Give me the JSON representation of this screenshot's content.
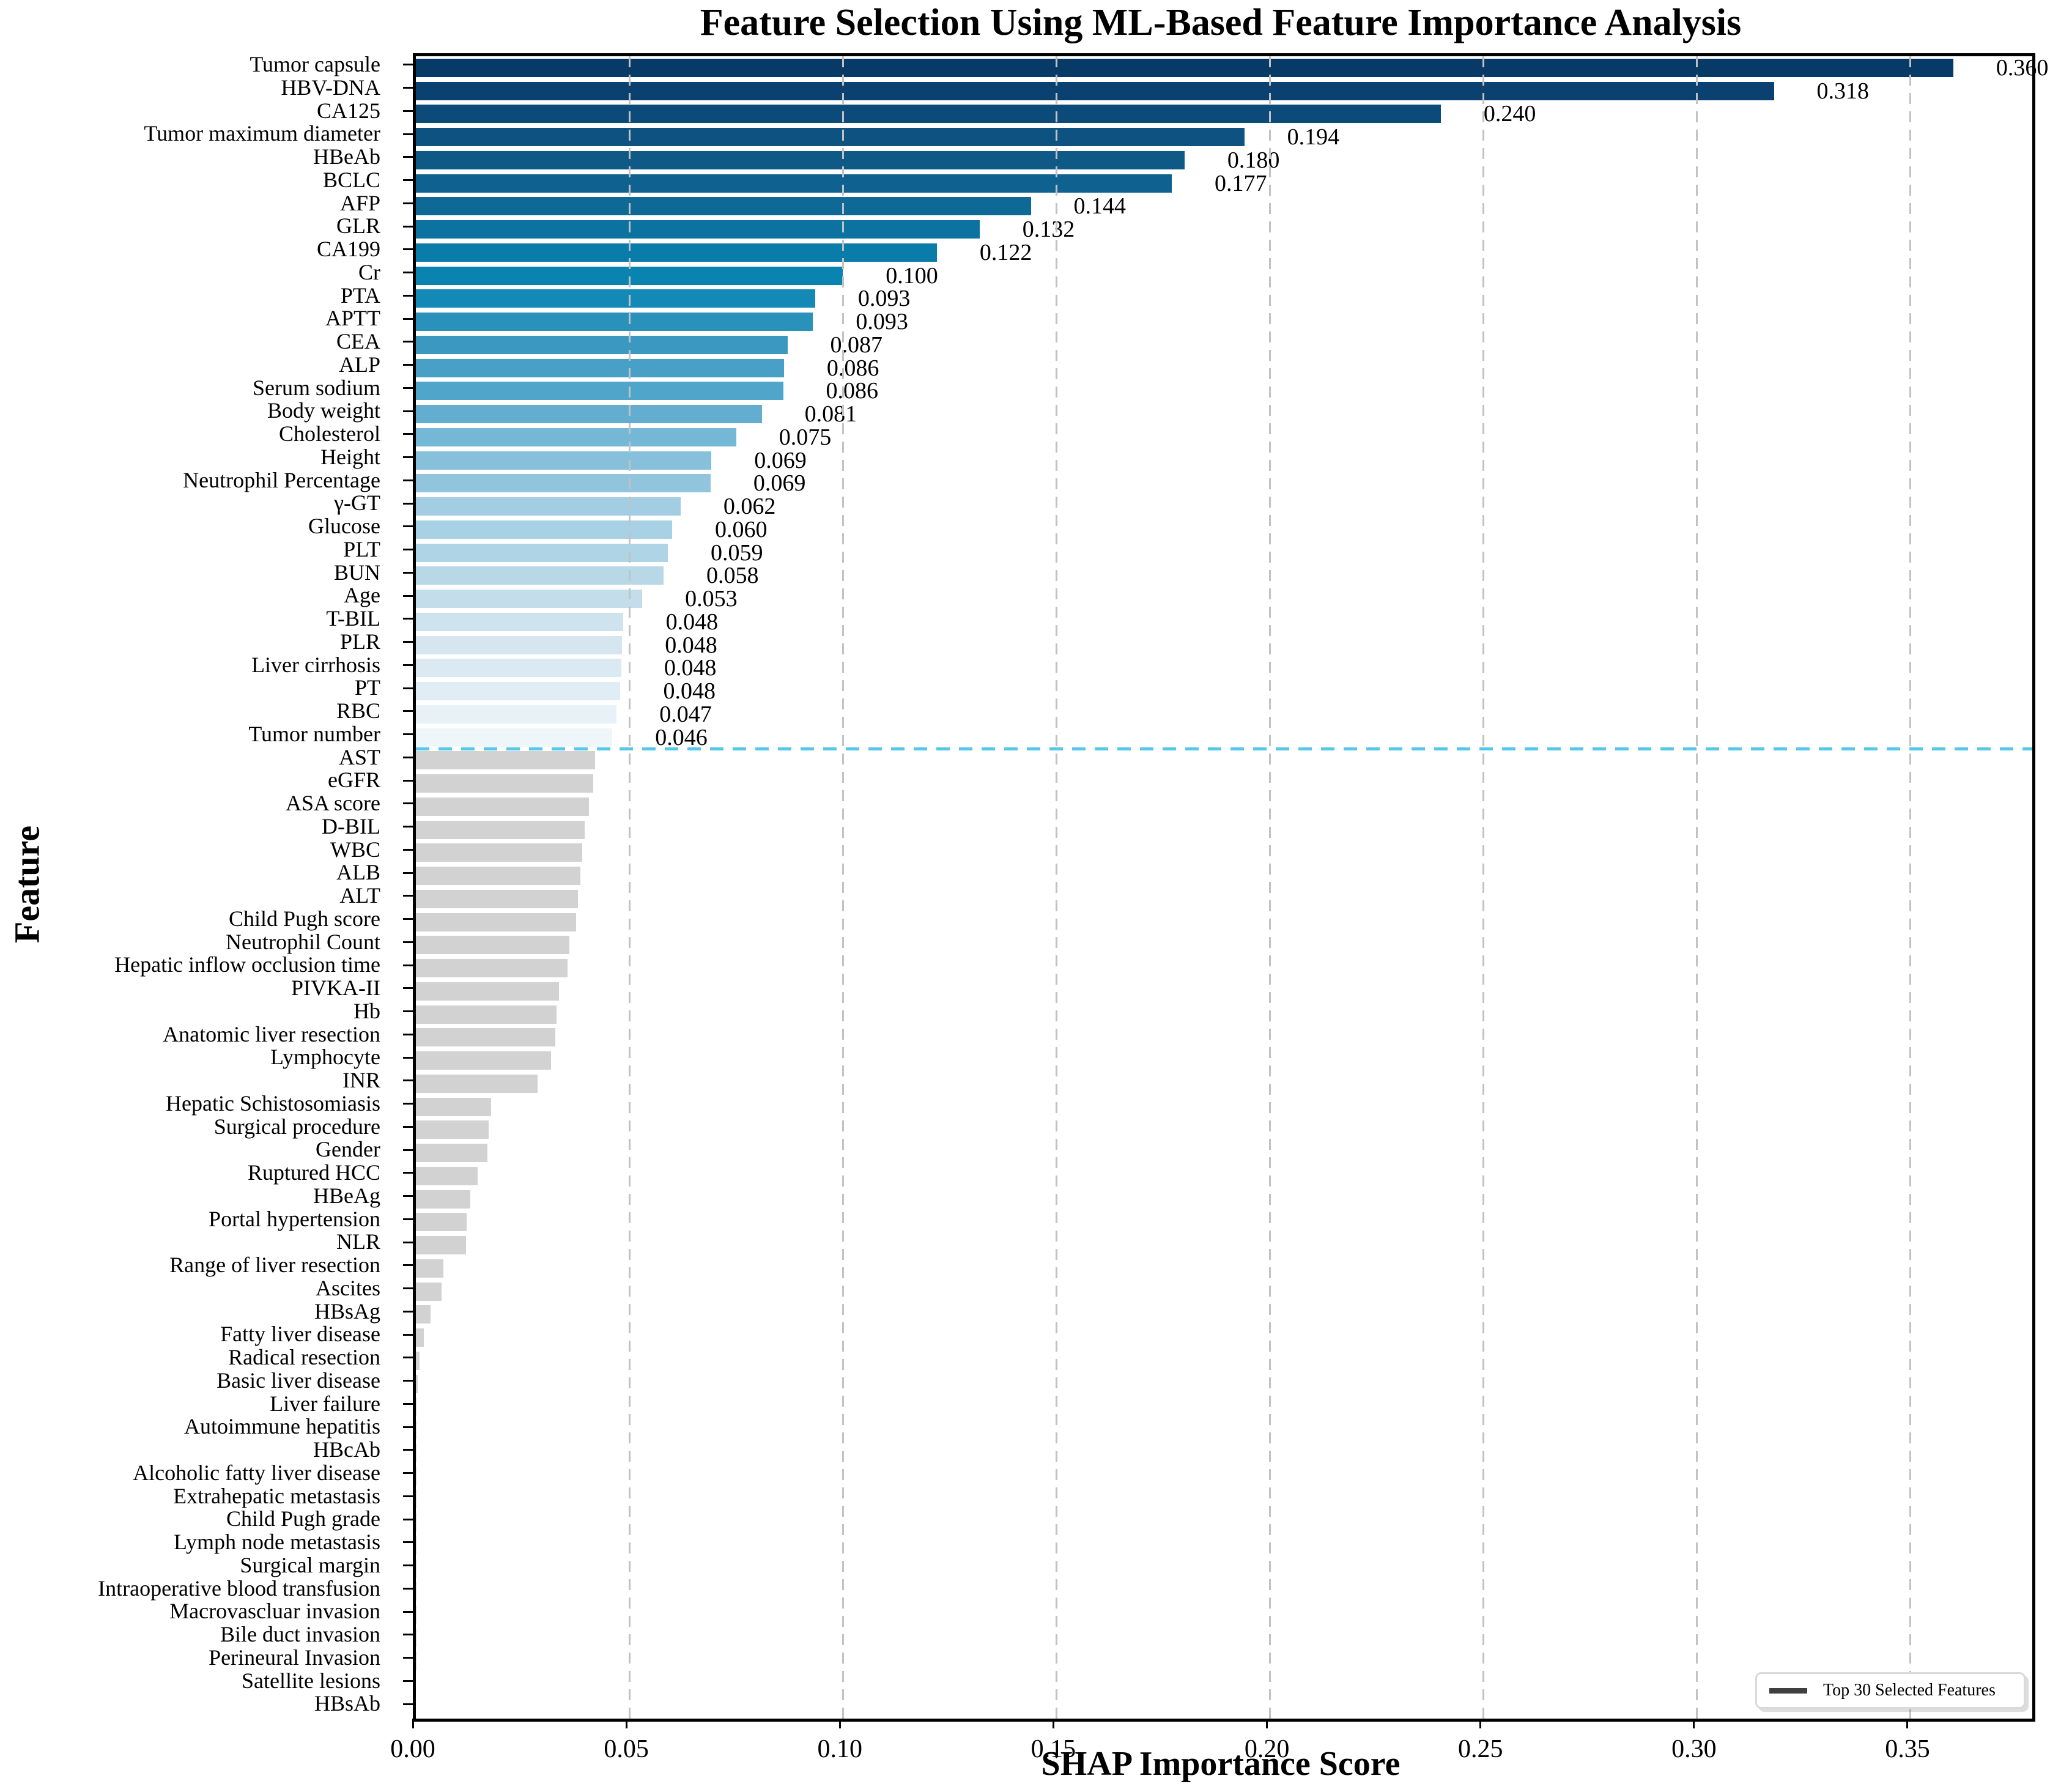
{
  "title": "Feature Selection Using ML-Based Feature Importance Analysis",
  "xlabel": "SHAP Importance Score",
  "ylabel": "Feature",
  "legend": {
    "label": "Top 30 Selected Features",
    "swatch_color": "#3f3f3f"
  },
  "separator": {
    "after_rank": 30,
    "color": "#55c7ea",
    "style": "dashed"
  },
  "axis": {
    "xmax": 0.3785,
    "xticks": [
      {
        "label": "0.00",
        "value": 0.0
      },
      {
        "label": "0.05",
        "value": 0.05
      },
      {
        "label": "0.10",
        "value": 0.1
      },
      {
        "label": "0.15",
        "value": 0.15
      },
      {
        "label": "0.20",
        "value": 0.2
      },
      {
        "label": "0.25",
        "value": 0.25
      },
      {
        "label": "0.30",
        "value": 0.3
      },
      {
        "label": "0.35",
        "value": 0.35
      }
    ],
    "grid": "vertical-dashed"
  },
  "colors": {
    "gray_bar": "#d2d2d2",
    "gridline": "#c2c2c2",
    "separator": "#55c7ea",
    "blue_ramp": [
      "#083a67",
      "#0a4170",
      "#0c4a79",
      "#0d5280",
      "#0f5987",
      "#0f618f",
      "#0e6997",
      "#0c73a0",
      "#0a7caa",
      "#0983b0",
      "#1589b5",
      "#2991ba",
      "#3b99c1",
      "#49a0c6",
      "#50a5ca",
      "#63aed0",
      "#75b8d6",
      "#86c0da",
      "#90c5dd",
      "#a3cde3",
      "#a9d1e5",
      "#afd4e6",
      "#b8d8e8",
      "#c3ddeb",
      "#cfe3ef",
      "#d5e6f0",
      "#dbe9f2",
      "#e0edf4",
      "#e8f1f7",
      "#eff6fa"
    ]
  },
  "chart_data": {
    "type": "bar",
    "orientation": "horizontal",
    "title": "Feature Selection Using ML-Based Feature Importance Analysis",
    "xlabel": "SHAP Importance Score",
    "ylabel": "Feature",
    "xlim": [
      0,
      0.3785
    ],
    "legend_position": "lower right",
    "features": [
      {
        "label": "Tumor capsule",
        "value": 0.36,
        "value_label": "0.360",
        "selected": true
      },
      {
        "label": "HBV-DNA",
        "value": 0.318,
        "value_label": "0.318",
        "selected": true
      },
      {
        "label": "CA125",
        "value": 0.24,
        "value_label": "0.240",
        "selected": true
      },
      {
        "label": "Tumor maximum diameter",
        "value": 0.194,
        "value_label": "0.194",
        "selected": true
      },
      {
        "label": "HBeAb",
        "value": 0.18,
        "value_label": "0.180",
        "selected": true
      },
      {
        "label": "BCLC",
        "value": 0.177,
        "value_label": "0.177",
        "selected": true
      },
      {
        "label": "AFP",
        "value": 0.144,
        "value_label": "0.144",
        "selected": true
      },
      {
        "label": "GLR",
        "value": 0.132,
        "value_label": "0.132",
        "selected": true
      },
      {
        "label": "CA199",
        "value": 0.122,
        "value_label": "0.122",
        "selected": true
      },
      {
        "label": "Cr",
        "value": 0.1,
        "value_label": "0.100",
        "selected": true
      },
      {
        "label": "PTA",
        "value": 0.0935,
        "value_label": "0.093",
        "selected": true
      },
      {
        "label": "APTT",
        "value": 0.093,
        "value_label": "0.093",
        "selected": true
      },
      {
        "label": "CEA",
        "value": 0.087,
        "value_label": "0.087",
        "selected": true
      },
      {
        "label": "ALP",
        "value": 0.0862,
        "value_label": "0.086",
        "selected": true
      },
      {
        "label": "Serum sodium",
        "value": 0.086,
        "value_label": "0.086",
        "selected": true
      },
      {
        "label": "Body weight",
        "value": 0.081,
        "value_label": "0.081",
        "selected": true
      },
      {
        "label": "Cholesterol",
        "value": 0.075,
        "value_label": "0.075",
        "selected": true
      },
      {
        "label": "Height",
        "value": 0.0692,
        "value_label": "0.069",
        "selected": true
      },
      {
        "label": "Neutrophil Percentage",
        "value": 0.069,
        "value_label": "0.069",
        "selected": true
      },
      {
        "label": "γ-GT",
        "value": 0.062,
        "value_label": "0.062",
        "selected": true
      },
      {
        "label": "Glucose",
        "value": 0.06,
        "value_label": "0.060",
        "selected": true
      },
      {
        "label": "PLT",
        "value": 0.059,
        "value_label": "0.059",
        "selected": true
      },
      {
        "label": "BUN",
        "value": 0.058,
        "value_label": "0.058",
        "selected": true
      },
      {
        "label": "Age",
        "value": 0.053,
        "value_label": "0.053",
        "selected": true
      },
      {
        "label": "T-BIL",
        "value": 0.0485,
        "value_label": "0.048",
        "selected": true
      },
      {
        "label": "PLR",
        "value": 0.0483,
        "value_label": "0.048",
        "selected": true
      },
      {
        "label": "Liver cirrhosis",
        "value": 0.0481,
        "value_label": "0.048",
        "selected": true
      },
      {
        "label": "PT",
        "value": 0.0479,
        "value_label": "0.048",
        "selected": true
      },
      {
        "label": "RBC",
        "value": 0.047,
        "value_label": "0.047",
        "selected": true
      },
      {
        "label": "Tumor number",
        "value": 0.046,
        "value_label": "0.046",
        "selected": true
      },
      {
        "label": "AST",
        "value": 0.042,
        "selected": false
      },
      {
        "label": "eGFR",
        "value": 0.0415,
        "selected": false
      },
      {
        "label": "ASA score",
        "value": 0.0405,
        "selected": false
      },
      {
        "label": "D-BIL",
        "value": 0.0395,
        "selected": false
      },
      {
        "label": "WBC",
        "value": 0.039,
        "selected": false
      },
      {
        "label": "ALB",
        "value": 0.0385,
        "selected": false
      },
      {
        "label": "ALT",
        "value": 0.038,
        "selected": false
      },
      {
        "label": "Child Pugh score",
        "value": 0.0375,
        "selected": false
      },
      {
        "label": "Neutrophil Count",
        "value": 0.036,
        "selected": false
      },
      {
        "label": "Hepatic inflow occlusion time",
        "value": 0.0355,
        "selected": false
      },
      {
        "label": "PIVKA-II",
        "value": 0.0335,
        "selected": false
      },
      {
        "label": "Hb",
        "value": 0.033,
        "selected": false
      },
      {
        "label": "Anatomic liver resection",
        "value": 0.0326,
        "selected": false
      },
      {
        "label": "Lymphocyte",
        "value": 0.0317,
        "selected": false
      },
      {
        "label": "INR",
        "value": 0.0285,
        "selected": false
      },
      {
        "label": "Hepatic Schistosomiasis",
        "value": 0.0176,
        "selected": false
      },
      {
        "label": "Surgical procedure",
        "value": 0.017,
        "selected": false
      },
      {
        "label": "Gender",
        "value": 0.0168,
        "selected": false
      },
      {
        "label": "Ruptured HCC",
        "value": 0.0145,
        "selected": false
      },
      {
        "label": "HBeAg",
        "value": 0.0127,
        "selected": false
      },
      {
        "label": "Portal hypertension",
        "value": 0.0119,
        "selected": false
      },
      {
        "label": "NLR",
        "value": 0.0118,
        "selected": false
      },
      {
        "label": "Range of liver resection",
        "value": 0.0065,
        "selected": false
      },
      {
        "label": "Ascites",
        "value": 0.006,
        "selected": false
      },
      {
        "label": "HBsAg",
        "value": 0.0035,
        "selected": false
      },
      {
        "label": "Fatty liver disease",
        "value": 0.0018,
        "selected": false
      },
      {
        "label": "Radical resection",
        "value": 0.0008,
        "selected": false
      },
      {
        "label": "Basic liver disease",
        "value": 0.0004,
        "selected": false
      },
      {
        "label": "Liver failure",
        "value": 0.0002,
        "selected": false
      },
      {
        "label": "Autoimmune hepatitis",
        "value": 0.0002,
        "selected": false
      },
      {
        "label": "HBcAb",
        "value": 0.0001,
        "selected": false
      },
      {
        "label": "Alcoholic fatty liver disease",
        "value": 0.0001,
        "selected": false
      },
      {
        "label": "Extrahepatic metastasis",
        "value": 0.0001,
        "selected": false
      },
      {
        "label": "Child Pugh grade",
        "value": 0.0001,
        "selected": false
      },
      {
        "label": "Lymph node metastasis",
        "value": 0.0001,
        "selected": false
      },
      {
        "label": "Surgical margin",
        "value": 5e-05,
        "selected": false
      },
      {
        "label": "Intraoperative blood transfusion",
        "value": 5e-05,
        "selected": false
      },
      {
        "label": "Macrovascluar invasion",
        "value": 3e-05,
        "selected": false
      },
      {
        "label": "Bile duct invasion",
        "value": 2e-05,
        "selected": false
      },
      {
        "label": "Perineural Invasion",
        "value": 2e-05,
        "selected": false
      },
      {
        "label": "Satellite lesions",
        "value": 1e-05,
        "selected": false
      },
      {
        "label": "HBsAb",
        "value": 0.0,
        "selected": false
      }
    ]
  }
}
